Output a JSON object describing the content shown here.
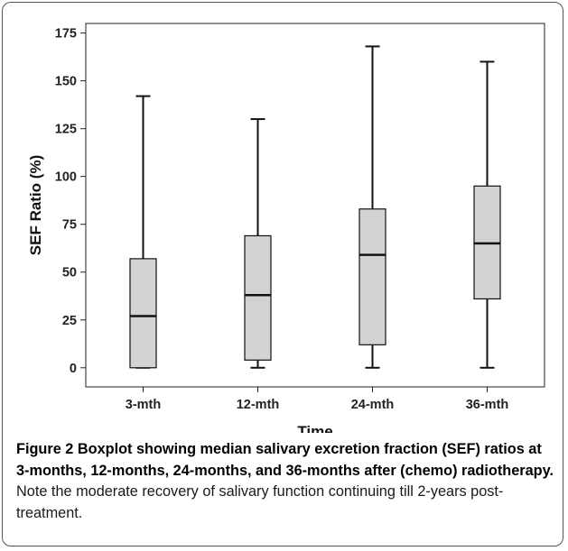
{
  "chart_data": {
    "type": "box",
    "xlabel": "Time",
    "ylabel": "SEF Ratio (%)",
    "ylim": [
      -10,
      180
    ],
    "yticks": [
      0,
      25,
      50,
      75,
      100,
      125,
      150,
      175
    ],
    "categories": [
      "3-mth",
      "12-mth",
      "24-mth",
      "36-mth"
    ],
    "boxes": [
      {
        "category": "3-mth",
        "min": 0,
        "q1": 0,
        "median": 27,
        "q3": 57,
        "max": 142
      },
      {
        "category": "12-mth",
        "min": 0,
        "q1": 4,
        "median": 38,
        "q3": 69,
        "max": 130
      },
      {
        "category": "24-mth",
        "min": 0,
        "q1": 12,
        "median": 59,
        "q3": 83,
        "max": 168
      },
      {
        "category": "36-mth",
        "min": 0,
        "q1": 36,
        "median": 65,
        "q3": 95,
        "max": 160
      }
    ],
    "box_fill": "#d3d3d3",
    "grid": false
  },
  "caption": {
    "label": "Figure 2",
    "bold_text": "Boxplot showing median salivary excretion fraction (SEF) ratios at 3-months, 12-months, 24-months, and 36-months after (chemo) radiotherapy.",
    "normal_text": "Note the moderate recovery of salivary function continuing till 2-years post-treatment."
  }
}
